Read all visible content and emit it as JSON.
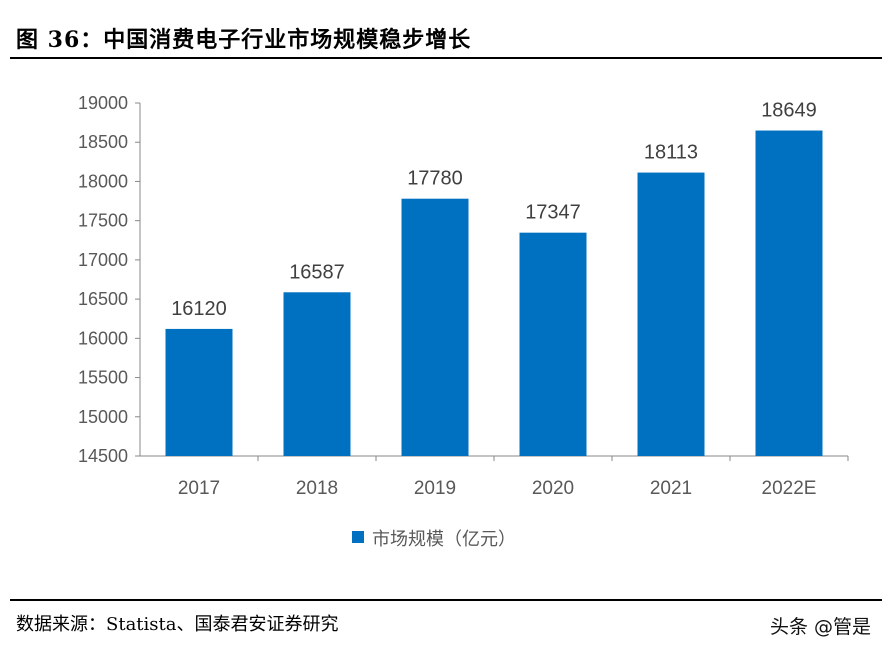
{
  "title": "图 36：中国消费电子行业市场规模稳步增长",
  "source": "数据来源：Statista、国泰君安证券研究",
  "watermark": "头条 @管是",
  "chart_data": {
    "type": "bar",
    "title": "",
    "xlabel": "",
    "ylabel": "",
    "categories": [
      "2017",
      "2018",
      "2019",
      "2020",
      "2021",
      "2022E"
    ],
    "series": [
      {
        "name": "市场规模（亿元）",
        "values": [
          16120,
          16587,
          17780,
          17347,
          18113,
          18649
        ],
        "color": "#0070C0"
      }
    ],
    "ylim": [
      14500,
      19000
    ],
    "yticks": [
      14500,
      15000,
      15500,
      16000,
      16500,
      17000,
      17500,
      18000,
      18500,
      19000
    ],
    "grid": false,
    "data_labels": true,
    "legend": "bottom"
  }
}
